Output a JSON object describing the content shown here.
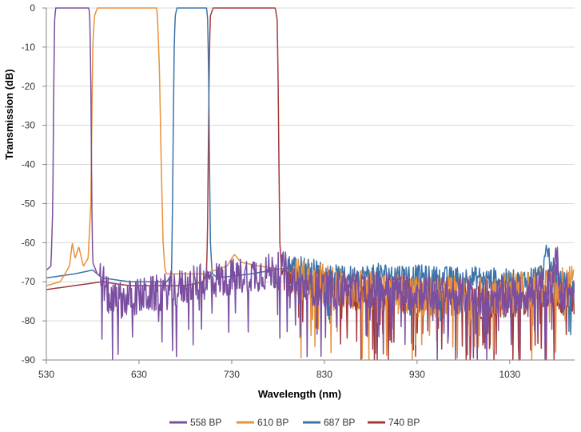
{
  "chart_data": {
    "type": "line",
    "title": "",
    "xlabel": "Wavelength (nm)",
    "ylabel": "Transmission (dB)",
    "xlim": [
      530,
      1100
    ],
    "ylim": [
      -90,
      0
    ],
    "x_ticks": [
      530,
      630,
      730,
      830,
      930,
      1030
    ],
    "x_tick_labels": [
      "530",
      "630",
      "730",
      "830",
      "930",
      "1030"
    ],
    "y_ticks": [
      0,
      -10,
      -20,
      -30,
      -40,
      -50,
      -60,
      -70,
      -80,
      -90
    ],
    "y_tick_labels": [
      "0",
      "-10",
      "-20",
      "-30",
      "-40",
      "-50",
      "-60",
      "-70",
      "-80",
      "-90"
    ],
    "grid": "horizontal",
    "legend_position": "bottom",
    "series": [
      {
        "name": "558 BP",
        "color": "#7B4FA0",
        "passband": [
          540,
          577
        ],
        "points": [
          [
            530,
            -67
          ],
          [
            535,
            -66
          ],
          [
            537,
            -50
          ],
          [
            538,
            -20
          ],
          [
            539,
            -3
          ],
          [
            540,
            0
          ],
          [
            560,
            0
          ],
          [
            576,
            0
          ],
          [
            577,
            -3
          ],
          [
            578,
            -20
          ],
          [
            579,
            -50
          ],
          [
            580,
            -65
          ],
          [
            585,
            -68
          ],
          [
            590,
            -69
          ],
          [
            595,
            -73
          ],
          [
            600,
            -75
          ],
          [
            650,
            -73
          ],
          [
            700,
            -70
          ],
          [
            750,
            -68
          ],
          [
            790,
            -67
          ],
          [
            800,
            -71
          ],
          [
            850,
            -72
          ],
          [
            900,
            -72
          ],
          [
            950,
            -73
          ],
          [
            1000,
            -74
          ],
          [
            1050,
            -73
          ],
          [
            1075,
            -71
          ],
          [
            1080,
            -63
          ],
          [
            1085,
            -72
          ],
          [
            1100,
            -73
          ]
        ],
        "noise": {
          "from": 588,
          "to": 1100,
          "amplitude": 8
        }
      },
      {
        "name": "610 BP",
        "color": "#E8913A",
        "passband": [
          586,
          650
        ],
        "points": [
          [
            530,
            -71
          ],
          [
            545,
            -70
          ],
          [
            555,
            -66
          ],
          [
            558,
            -60
          ],
          [
            561,
            -64
          ],
          [
            565,
            -61
          ],
          [
            570,
            -66
          ],
          [
            575,
            -64
          ],
          [
            578,
            -50
          ],
          [
            579,
            -30
          ],
          [
            580,
            -10
          ],
          [
            582,
            -2
          ],
          [
            585,
            0
          ],
          [
            630,
            0
          ],
          [
            649,
            0
          ],
          [
            650,
            -3
          ],
          [
            652,
            -15
          ],
          [
            654,
            -40
          ],
          [
            656,
            -60
          ],
          [
            658,
            -67
          ],
          [
            660,
            -68
          ],
          [
            700,
            -68
          ],
          [
            725,
            -66
          ],
          [
            730,
            -64
          ],
          [
            733,
            -63
          ],
          [
            740,
            -65
          ],
          [
            760,
            -66
          ],
          [
            790,
            -67
          ],
          [
            800,
            -69
          ],
          [
            850,
            -72
          ],
          [
            900,
            -73
          ],
          [
            950,
            -74
          ],
          [
            1000,
            -74
          ],
          [
            1050,
            -72
          ],
          [
            1100,
            -71
          ]
        ],
        "noise": {
          "from": 795,
          "to": 1100,
          "amplitude": 9
        }
      },
      {
        "name": "687 BP",
        "color": "#3C74A8",
        "passband": [
          669,
          704
        ],
        "points": [
          [
            530,
            -69
          ],
          [
            560,
            -68
          ],
          [
            580,
            -67
          ],
          [
            590,
            -69
          ],
          [
            620,
            -70
          ],
          [
            650,
            -70
          ],
          [
            660,
            -70
          ],
          [
            665,
            -68
          ],
          [
            666,
            -55
          ],
          [
            667,
            -30
          ],
          [
            668,
            -10
          ],
          [
            669,
            -2
          ],
          [
            671,
            0
          ],
          [
            700,
            0
          ],
          [
            703,
            0
          ],
          [
            704,
            -3
          ],
          [
            705,
            -15
          ],
          [
            706,
            -40
          ],
          [
            707,
            -60
          ],
          [
            709,
            -68
          ],
          [
            715,
            -69
          ],
          [
            750,
            -68
          ],
          [
            800,
            -66
          ],
          [
            850,
            -69
          ],
          [
            900,
            -68
          ],
          [
            950,
            -69
          ],
          [
            1000,
            -69
          ],
          [
            1040,
            -70
          ],
          [
            1065,
            -68
          ],
          [
            1071,
            -62
          ],
          [
            1076,
            -66
          ],
          [
            1085,
            -70
          ],
          [
            1100,
            -72
          ]
        ],
        "noise": {
          "from": 790,
          "to": 1100,
          "amplitude": 5
        }
      },
      {
        "name": "740 BP",
        "color": "#A33A3A",
        "passband": [
          706,
          780
        ],
        "points": [
          [
            530,
            -72
          ],
          [
            560,
            -71
          ],
          [
            590,
            -70
          ],
          [
            620,
            -71
          ],
          [
            650,
            -71
          ],
          [
            680,
            -71
          ],
          [
            700,
            -70
          ],
          [
            703,
            -67
          ],
          [
            704,
            -55
          ],
          [
            705,
            -30
          ],
          [
            706,
            -10
          ],
          [
            707,
            -2
          ],
          [
            710,
            0
          ],
          [
            777,
            0
          ],
          [
            779,
            -3
          ],
          [
            780,
            -15
          ],
          [
            781,
            -40
          ],
          [
            782,
            -60
          ],
          [
            784,
            -68
          ],
          [
            790,
            -70
          ],
          [
            800,
            -69
          ],
          [
            850,
            -73
          ],
          [
            900,
            -73
          ],
          [
            950,
            -74
          ],
          [
            1000,
            -75
          ],
          [
            1050,
            -74
          ],
          [
            1080,
            -73
          ],
          [
            1100,
            -74
          ]
        ],
        "noise": {
          "from": 785,
          "to": 1100,
          "amplitude": 8
        }
      }
    ]
  }
}
